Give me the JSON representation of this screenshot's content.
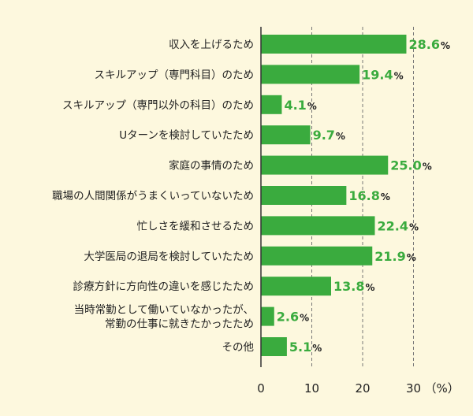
{
  "chart_data": {
    "type": "bar",
    "orientation": "horizontal",
    "categories": [
      [
        "収入を上げるため"
      ],
      [
        "スキルアップ（専門科目）のため"
      ],
      [
        "スキルアップ（専門以外の科目）のため"
      ],
      [
        "Uターンを検討していたため"
      ],
      [
        "家庭の事情のため"
      ],
      [
        "職場の人間関係がうまくいっていないため"
      ],
      [
        "忙しさを緩和させるため"
      ],
      [
        "大学医局の退局を検討していたため"
      ],
      [
        "診療方針に方向性の違いを感じたため"
      ],
      [
        "当時常勤として働いていなかったが、",
        "常勤の仕事に就きたかったため"
      ],
      [
        "その他"
      ]
    ],
    "values": [
      28.6,
      19.4,
      4.1,
      9.7,
      25.0,
      16.8,
      22.4,
      21.9,
      13.8,
      2.6,
      5.1
    ],
    "value_labels": [
      "28.6",
      "19.4",
      "4.1",
      "9.7",
      "25.0",
      "16.8",
      "22.4",
      "21.9",
      "13.8",
      "2.6",
      "5.1"
    ],
    "value_unit": "%",
    "xticks": [
      "0",
      "10",
      "20",
      "30"
    ],
    "xunit_label": "（%）",
    "xlim": [
      0,
      30
    ],
    "grid": "dashed-vertical",
    "colors": {
      "bar": "#3aab3e",
      "value_text": "#3aab3e",
      "background": "#fdf8de",
      "axis": "#333333",
      "grid": "#777777"
    }
  }
}
